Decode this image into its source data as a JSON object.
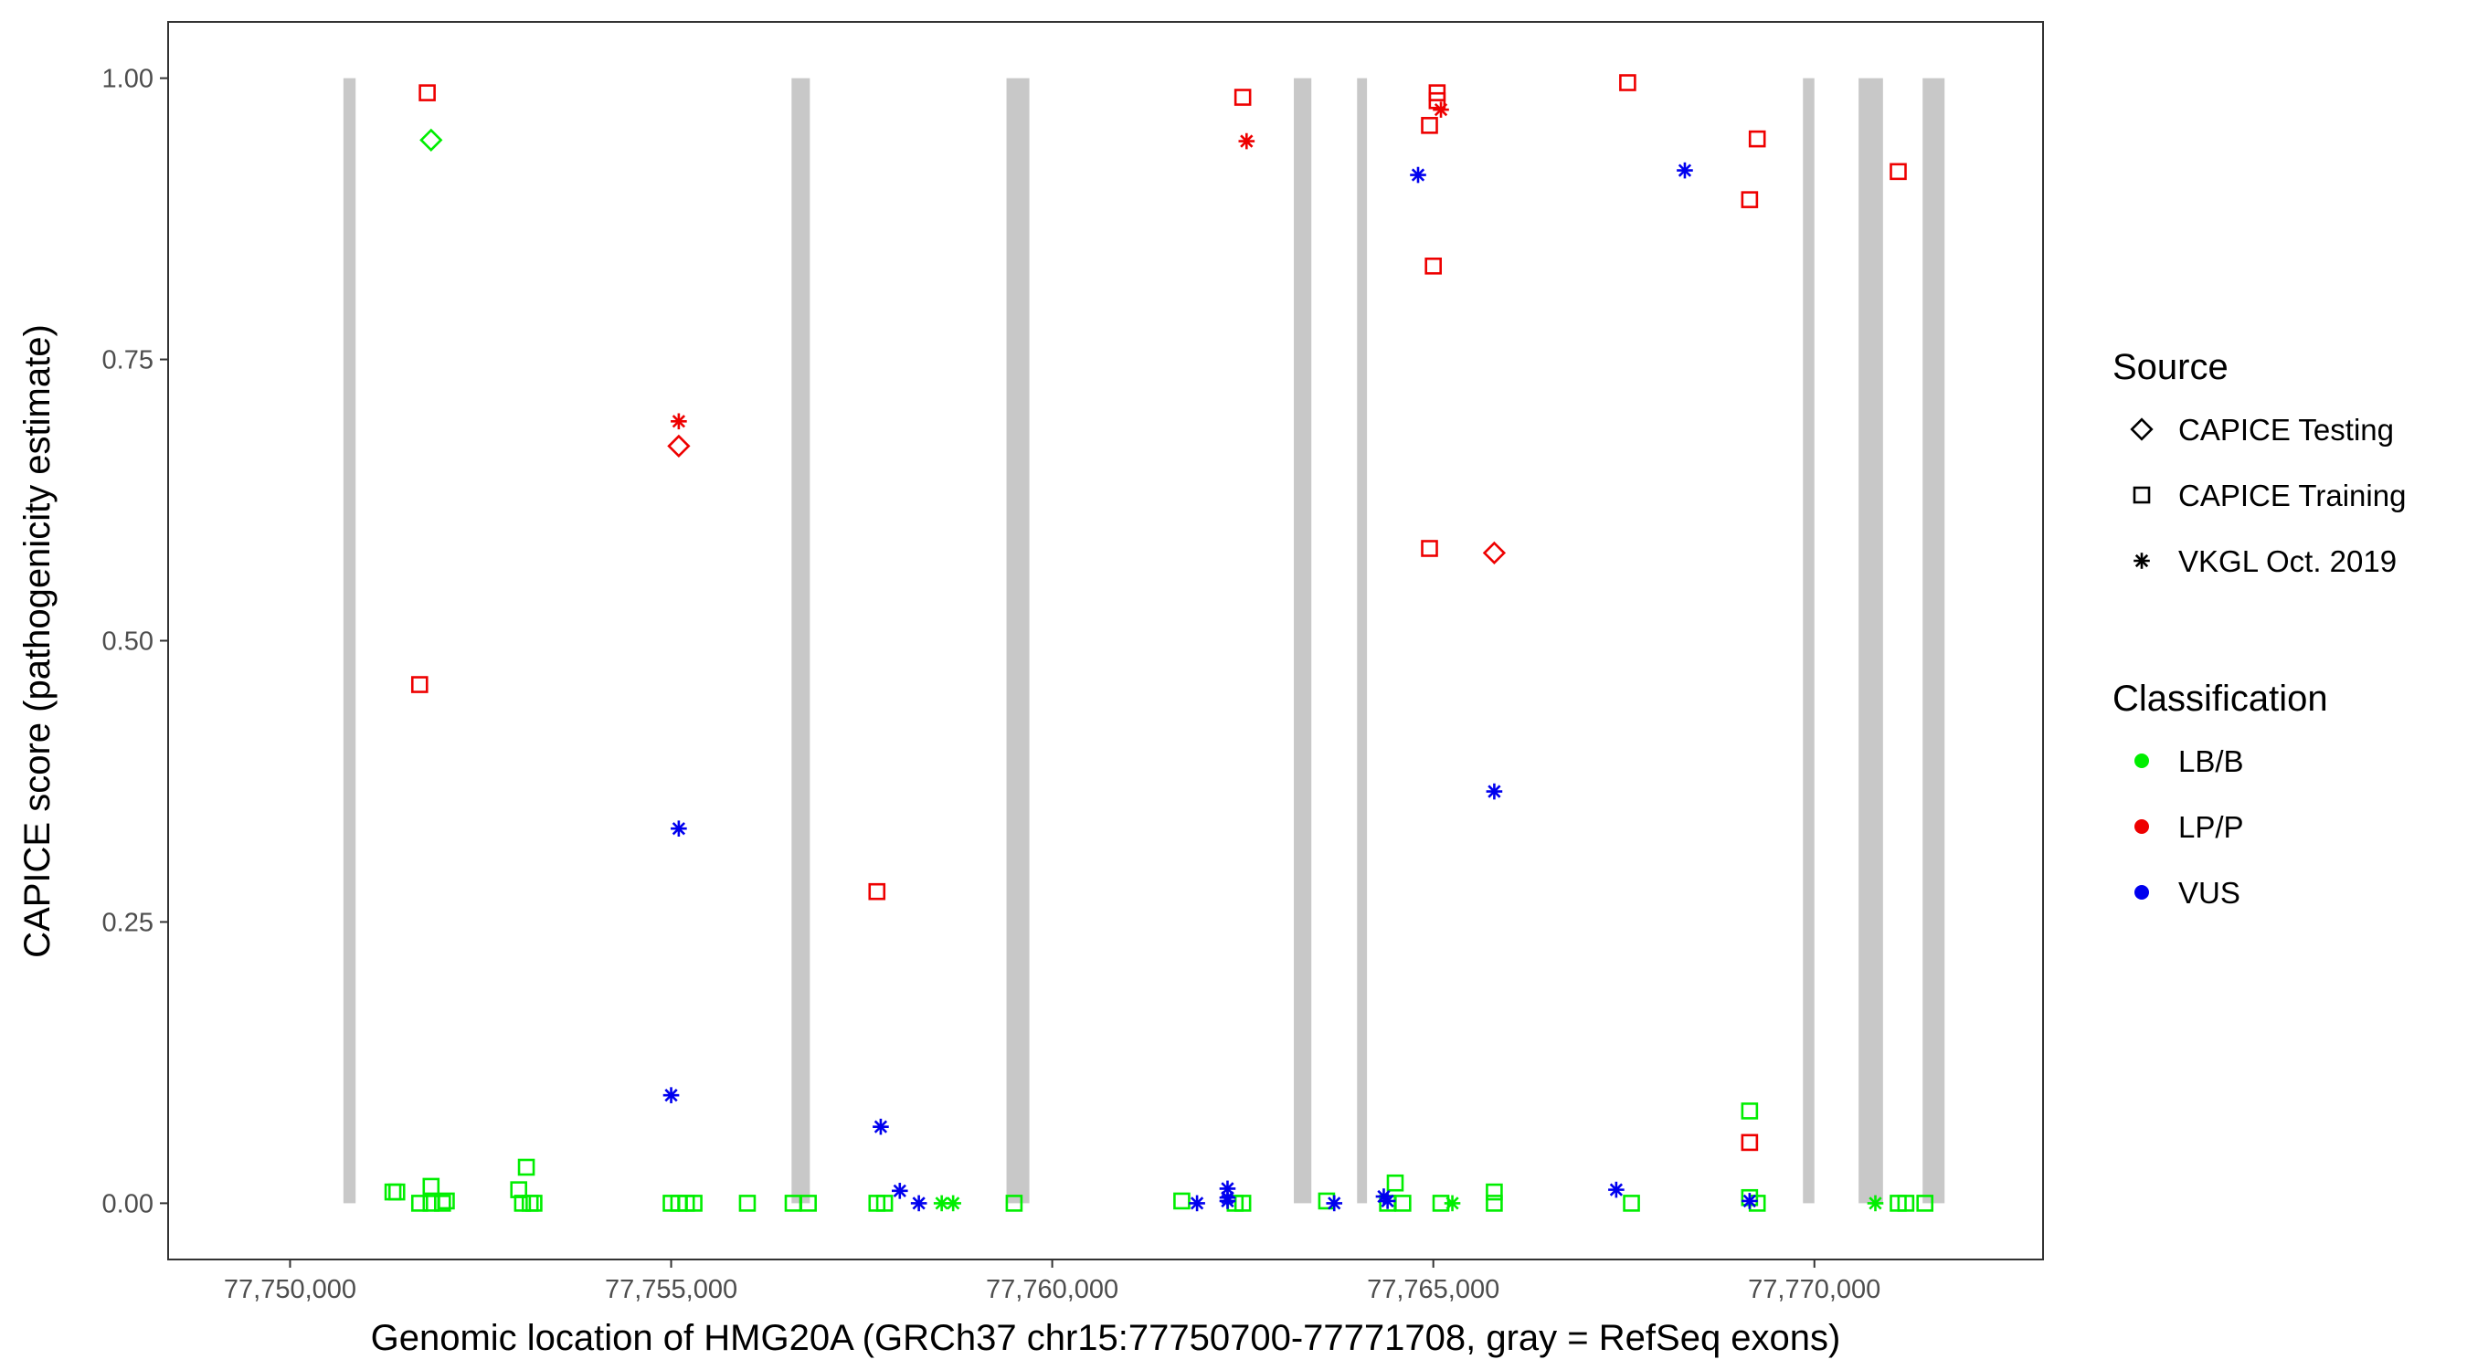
{
  "chart_data": {
    "type": "scatter",
    "xlabel": "Genomic location of HMG20A (GRCh37 chr15:77750700-77771708, gray = RefSeq exons)",
    "ylabel": "CAPICE score (pathogenicity estimate)",
    "xlim": [
      77748400,
      77773000
    ],
    "ylim": [
      -0.05,
      1.05
    ],
    "x_ticks": [
      77750000,
      77755000,
      77760000,
      77765000,
      77770000
    ],
    "x_tick_labels": [
      "77,750,000",
      "77,755,000",
      "77,760,000",
      "77,765,000",
      "77,770,000"
    ],
    "y_ticks": [
      0,
      0.25,
      0.5,
      0.75,
      1
    ],
    "y_tick_labels": [
      "0.00",
      "0.25",
      "0.50",
      "0.75",
      "1.00"
    ],
    "grid": false,
    "exons": [
      [
        77750700,
        77750860
      ],
      [
        77756580,
        77756820
      ],
      [
        77759400,
        77759700
      ],
      [
        77763170,
        77763400
      ],
      [
        77764000,
        77764130
      ],
      [
        77769850,
        77770000
      ],
      [
        77770580,
        77770900
      ],
      [
        77771420,
        77771708
      ]
    ],
    "colors": {
      "LB/B": "#00ee00",
      "LP/P": "#ee0000",
      "VUS": "#0000ee",
      "exon": "#c8c8c8"
    },
    "legends": [
      {
        "title": "Source",
        "position": "right",
        "items": [
          {
            "label": "CAPICE Testing",
            "shape": "diamond"
          },
          {
            "label": "CAPICE Training",
            "shape": "square"
          },
          {
            "label": "VKGL Oct. 2019",
            "shape": "asterisk"
          }
        ]
      },
      {
        "title": "Classification",
        "position": "right",
        "items": [
          {
            "label": "LB/B",
            "color": "#00ee00"
          },
          {
            "label": "LP/P",
            "color": "#ee0000"
          },
          {
            "label": "VUS",
            "color": "#0000ee"
          }
        ]
      }
    ],
    "series": [
      {
        "source": "CAPICE Testing",
        "classification": "LB/B",
        "shape": "diamond",
        "points": [
          [
            77751850,
            0.945
          ]
        ]
      },
      {
        "source": "CAPICE Testing",
        "classification": "LP/P",
        "shape": "diamond",
        "points": [
          [
            77755100,
            0.673
          ],
          [
            77765800,
            0.578
          ]
        ]
      },
      {
        "source": "CAPICE Training",
        "classification": "LP/P",
        "shape": "square",
        "points": [
          [
            77751800,
            0.987
          ],
          [
            77751700,
            0.461
          ],
          [
            77757700,
            0.277
          ],
          [
            77762500,
            0.983
          ],
          [
            77764950,
            0.958
          ],
          [
            77765050,
            0.987
          ],
          [
            77765050,
            0.98
          ],
          [
            77765000,
            0.833
          ],
          [
            77764950,
            0.582
          ],
          [
            77767550,
            0.996
          ],
          [
            77769250,
            0.946
          ],
          [
            77769150,
            0.892
          ],
          [
            77771100,
            0.917
          ],
          [
            77769150,
            0.054
          ]
        ]
      },
      {
        "source": "CAPICE Training",
        "classification": "LB/B",
        "shape": "square",
        "points": [
          [
            77751350,
            0.01
          ],
          [
            77751400,
            0.01
          ],
          [
            77751700,
            0.0
          ],
          [
            77751850,
            0.015
          ],
          [
            77751850,
            0.0
          ],
          [
            77752000,
            0.0
          ],
          [
            77752050,
            0.002
          ],
          [
            77753000,
            0.012
          ],
          [
            77753050,
            0.0
          ],
          [
            77753100,
            0.032
          ],
          [
            77753150,
            0.0
          ],
          [
            77753200,
            0.0
          ],
          [
            77755000,
            0.0
          ],
          [
            77755100,
            0.0
          ],
          [
            77755200,
            0.0
          ],
          [
            77755300,
            0.0
          ],
          [
            77756000,
            0.0
          ],
          [
            77756600,
            0.0
          ],
          [
            77756800,
            0.0
          ],
          [
            77757700,
            0.0
          ],
          [
            77757800,
            0.0
          ],
          [
            77759500,
            0.0
          ],
          [
            77761700,
            0.002
          ],
          [
            77762400,
            0.0
          ],
          [
            77762500,
            0.0
          ],
          [
            77763600,
            0.002
          ],
          [
            77764400,
            0.0
          ],
          [
            77764500,
            0.018
          ],
          [
            77764600,
            0.0
          ],
          [
            77765100,
            0.0
          ],
          [
            77765800,
            0.01
          ],
          [
            77765800,
            0.0
          ],
          [
            77767600,
            0.0
          ],
          [
            77769150,
            0.082
          ],
          [
            77769150,
            0.005
          ],
          [
            77769250,
            0.0
          ],
          [
            77771100,
            0.0
          ],
          [
            77771200,
            0.0
          ],
          [
            77771450,
            0.0
          ]
        ]
      },
      {
        "source": "VKGL Oct. 2019",
        "classification": "LP/P",
        "shape": "asterisk",
        "points": [
          [
            77755100,
            0.695
          ],
          [
            77762550,
            0.944
          ],
          [
            77765100,
            0.972
          ]
        ]
      },
      {
        "source": "VKGL Oct. 2019",
        "classification": "VUS",
        "shape": "asterisk",
        "points": [
          [
            77755100,
            0.333
          ],
          [
            77755000,
            0.096
          ],
          [
            77757750,
            0.068
          ],
          [
            77758000,
            0.011
          ],
          [
            77758250,
            0.0
          ],
          [
            77761900,
            0.0
          ],
          [
            77762300,
            0.013
          ],
          [
            77762300,
            0.005
          ],
          [
            77762300,
            0.002
          ],
          [
            77763700,
            0.0
          ],
          [
            77764350,
            0.006
          ],
          [
            77764400,
            0.002
          ],
          [
            77764800,
            0.914
          ],
          [
            77765800,
            0.366
          ],
          [
            77767400,
            0.012
          ],
          [
            77768300,
            0.918
          ],
          [
            77769150,
            0.002
          ]
        ]
      },
      {
        "source": "VKGL Oct. 2019",
        "classification": "LB/B",
        "shape": "asterisk",
        "points": [
          [
            77758550,
            0.0
          ],
          [
            77758700,
            0.0
          ],
          [
            77765250,
            0.0
          ],
          [
            77770800,
            0.0
          ]
        ]
      }
    ]
  }
}
